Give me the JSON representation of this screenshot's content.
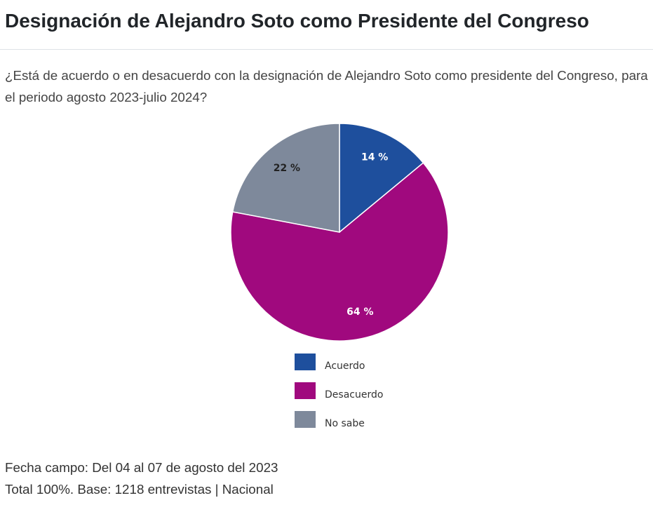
{
  "header": {
    "title": "Designación de Alejandro Soto como Presidente del Congreso"
  },
  "question": "¿Está de acuerdo o en desacuerdo con la designación de Alejandro Soto como presidente del Congreso, para el periodo agosto 2023-julio 2024?",
  "chart_data": {
    "type": "pie",
    "categories": [
      "Acuerdo",
      "Desacuerdo",
      "No sabe"
    ],
    "values": [
      14,
      64,
      22
    ],
    "value_labels": [
      "14 %",
      "64 %",
      "22 %"
    ],
    "colors": [
      "#1e4f9d",
      "#a0097e",
      "#7e899b"
    ],
    "label_colors": [
      "#ffffff",
      "#ffffff",
      "#222222"
    ]
  },
  "footer": {
    "fieldwork": "Fecha campo: Del 04 al 07 de agosto del 2023",
    "sample": "Total 100%. Base: 1218 entrevistas | Nacional"
  }
}
